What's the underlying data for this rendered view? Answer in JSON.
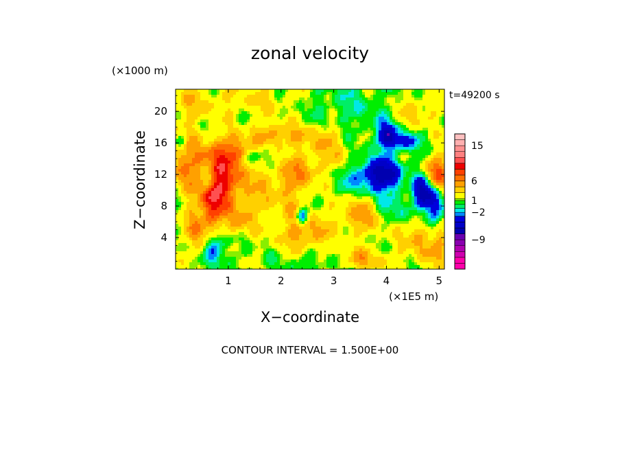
{
  "chart_data": {
    "type": "heatmap",
    "title": "zonal velocity",
    "xlabel": "X−coordinate",
    "ylabel": "Z−coordinate",
    "x_unit": "(×1E5 m)",
    "y_unit": "(×1000 m)",
    "time_label": "t=49200 s",
    "footer": "CONTOUR INTERVAL = 1.500E+00",
    "x_range": [
      0.0,
      5.1
    ],
    "y_range": [
      0.0,
      22.8
    ],
    "x_ticks": [
      1,
      2,
      3,
      4,
      5
    ],
    "x_tick_labels": [
      "1",
      "2",
      "3",
      "4",
      "5"
    ],
    "y_ticks": [
      4,
      8,
      12,
      16,
      20
    ],
    "y_tick_labels": [
      "4",
      "8",
      "12",
      "16",
      "20"
    ],
    "contour_interval": 1.5,
    "colorbar": {
      "levels": [
        -16.5,
        -15,
        -13.5,
        -12,
        -10.5,
        -9,
        -7.5,
        -6,
        -4.5,
        -3,
        -2,
        -1,
        0,
        1,
        1.5,
        3,
        4.5,
        6,
        7.5,
        9,
        10.5,
        12,
        13.5,
        15,
        16.5,
        18
      ],
      "tick_values": [
        15,
        6,
        1,
        -2,
        -9
      ],
      "tick_labels": [
        "15",
        "6",
        "1",
        "−2",
        "−9"
      ],
      "colors": [
        "#ff00aa",
        "#ff00aa",
        "#d000b0",
        "#b000b0",
        "#8a00b0",
        "#6a00b0",
        "#0000b0",
        "#0000c8",
        "#0000dd",
        "#0088ff",
        "#00e8e8",
        "#00ee66",
        "#00ee00",
        "#88ee00",
        "#ffff00",
        "#ffd000",
        "#ffa000",
        "#ff7000",
        "#ff4000",
        "#ee0000",
        "#ff5050",
        "#ff8080",
        "#ff9090",
        "#ffb0b0",
        "#ffc0c0"
      ]
    },
    "blobs": [
      {
        "x": 0.15,
        "z": 21.0,
        "sx": 0.4,
        "sz": 2.0,
        "v": 2
      },
      {
        "x": 1.5,
        "z": 21.5,
        "sx": 0.7,
        "sz": 1.5,
        "v": 2
      },
      {
        "x": 3.2,
        "z": 20.5,
        "sx": 0.6,
        "sz": 2.5,
        "v": -1.5
      },
      {
        "x": 4.6,
        "z": 20.0,
        "sx": 0.3,
        "sz": 1.5,
        "v": 2.5
      },
      {
        "x": 0.85,
        "z": 11.5,
        "sx": 0.35,
        "sz": 3.0,
        "v": 7
      },
      {
        "x": 0.7,
        "z": 8.5,
        "sx": 0.15,
        "sz": 3.5,
        "v": 5
      },
      {
        "x": 0.6,
        "z": 11.5,
        "sx": 0.1,
        "sz": 1.2,
        "v": -6
      },
      {
        "x": 0.75,
        "z": 2.8,
        "sx": 0.12,
        "sz": 1.5,
        "v": -6
      },
      {
        "x": 0.15,
        "z": 14.0,
        "sx": 0.25,
        "sz": 2.5,
        "v": 4
      },
      {
        "x": 0.1,
        "z": 16.0,
        "sx": 0.08,
        "sz": 0.8,
        "v": -4
      },
      {
        "x": 0.4,
        "z": 5.0,
        "sx": 0.15,
        "sz": 2.0,
        "v": 4
      },
      {
        "x": 1.15,
        "z": 15.0,
        "sx": 0.25,
        "sz": 1.2,
        "v": 4
      },
      {
        "x": 1.2,
        "z": 6.0,
        "sx": 0.15,
        "sz": 1.2,
        "v": 3
      },
      {
        "x": 1.9,
        "z": 17.0,
        "sx": 0.35,
        "sz": 1.2,
        "v": 4
      },
      {
        "x": 1.55,
        "z": 14.5,
        "sx": 0.2,
        "sz": 1.0,
        "v": -3
      },
      {
        "x": 2.45,
        "z": 4.5,
        "sx": 0.3,
        "sz": 1.5,
        "v": 4
      },
      {
        "x": 2.4,
        "z": 6.6,
        "sx": 0.08,
        "sz": 0.8,
        "v": -6
      },
      {
        "x": 2.3,
        "z": 12.0,
        "sx": 0.3,
        "sz": 1.5,
        "v": 3
      },
      {
        "x": 2.8,
        "z": 16.5,
        "sx": 0.3,
        "sz": 1.5,
        "v": 3
      },
      {
        "x": 3.1,
        "z": 10.5,
        "sx": 0.5,
        "sz": 2.5,
        "v": -1.5
      },
      {
        "x": 3.5,
        "z": 7.0,
        "sx": 0.35,
        "sz": 2.0,
        "v": 4
      },
      {
        "x": 3.55,
        "z": 1.2,
        "sx": 0.35,
        "sz": 1.0,
        "v": 3.5
      },
      {
        "x": 3.9,
        "z": 12.0,
        "sx": 0.35,
        "sz": 1.5,
        "v": -8
      },
      {
        "x": 4.25,
        "z": 8.0,
        "sx": 0.3,
        "sz": 1.5,
        "v": -3
      },
      {
        "x": 4.0,
        "z": 17.0,
        "sx": 0.15,
        "sz": 1.2,
        "v": -6
      },
      {
        "x": 4.3,
        "z": 16.2,
        "sx": 0.2,
        "sz": 0.8,
        "v": -5
      },
      {
        "x": 4.7,
        "z": 10.0,
        "sx": 0.15,
        "sz": 1.5,
        "v": -8
      },
      {
        "x": 4.65,
        "z": 4.0,
        "sx": 0.25,
        "sz": 2.0,
        "v": 4
      },
      {
        "x": 4.95,
        "z": 12.0,
        "sx": 0.15,
        "sz": 1.5,
        "v": 8
      },
      {
        "x": 4.9,
        "z": 7.0,
        "sx": 0.1,
        "sz": 2.5,
        "v": -6
      },
      {
        "x": 5.0,
        "z": 3.0,
        "sx": 0.12,
        "sz": 2.0,
        "v": 4
      },
      {
        "x": 4.45,
        "z": 10.5,
        "sx": 0.15,
        "sz": 2.0,
        "v": 3
      },
      {
        "x": 2.0,
        "z": 9.0,
        "sx": 0.6,
        "sz": 3.0,
        "v": 2.5
      },
      {
        "x": 3.0,
        "z": 13.5,
        "sx": 0.5,
        "sz": 1.5,
        "v": 2
      },
      {
        "x": 2.65,
        "z": 0.8,
        "sx": 0.4,
        "sz": 0.9,
        "v": -1.2
      }
    ]
  }
}
